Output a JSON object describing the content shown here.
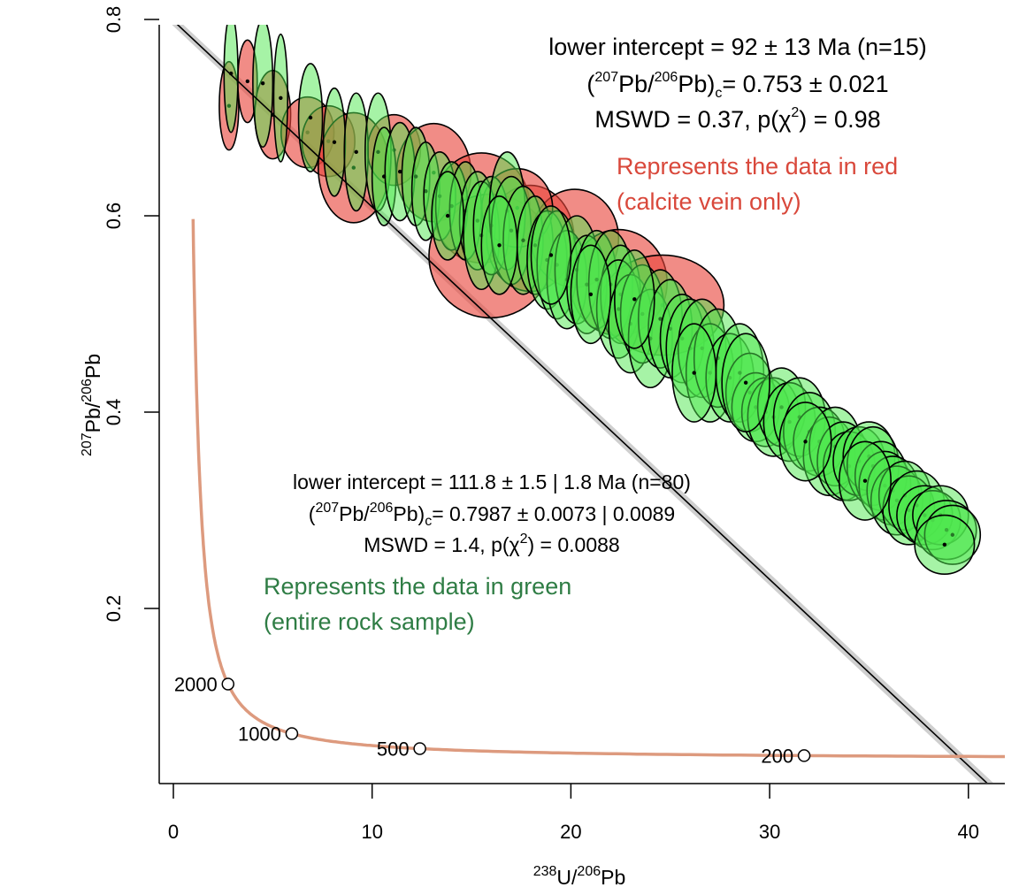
{
  "chart_data": {
    "type": "scatter",
    "subtype": "error-ellipse Tera-Wasserburg concordia",
    "xlabel": {
      "sup1": "238",
      "main1": "U/",
      "sup2": "206",
      "main2": "Pb"
    },
    "ylabel": {
      "sup1": "207",
      "main1": "Pb/",
      "sup2": "206",
      "main2": "Pb"
    },
    "xlim": [
      -0.7,
      42
    ],
    "ylim": [
      0.022,
      0.79
    ],
    "x_ticks": [
      "0",
      "10",
      "20",
      "30",
      "40"
    ],
    "y_ticks": [
      "0.2",
      "0.4",
      "0.6",
      "0.8"
    ],
    "grid": false,
    "colors": {
      "red_fill": "#e8463c",
      "green_fill": "#4de84d",
      "concordia": "#dd9a7e",
      "red_text": "#d9483b",
      "green_text": "#2f7d45",
      "line": "#000000",
      "band": "#bbbbbb"
    },
    "concordia_labels": [
      {
        "age": "2000",
        "t": 2000
      },
      {
        "age": "1000",
        "t": 1000
      },
      {
        "age": "500",
        "t": 500
      },
      {
        "age": "200",
        "t": 200
      }
    ],
    "regression": {
      "y_intercept": 0.7987,
      "x_at_y0": 42.1
    },
    "red_annotation": {
      "line1": "lower intercept = 92 ± 13 Ma (n=15)",
      "open": "(",
      "sup1": "207",
      "pb1": "Pb/",
      "sup2": "206",
      "pb2": "Pb)",
      "sub": "c",
      "value": "= 0.753 ± 0.021",
      "mswd_a": "MSWD = 0.37, p(χ",
      "mswd_sup": "2",
      "mswd_b": ") = 0.98",
      "desc1": "Represents the data in red",
      "desc2": "(calcite vein only)"
    },
    "green_annotation": {
      "line1": "lower intercept = 111.8 ± 1.5 | 1.8 Ma (n=80)",
      "open": "(",
      "sup1": "207",
      "pb1": "Pb/",
      "sup2": "206",
      "pb2": "Pb)",
      "sub": "c",
      "value": "= 0.7987 ± 0.0073 | 0.0089",
      "mswd_a": "MSWD = 1.4, p(χ",
      "mswd_sup": "2",
      "mswd_b": ") = 0.0088",
      "desc1": "Represents the data in green",
      "desc2": "(entire rock sample)"
    },
    "red_series": [
      [
        2.8,
        0.712,
        0.49,
        0.045
      ],
      [
        3.73,
        0.737,
        0.49,
        0.042
      ],
      [
        5.0,
        0.703,
        0.9,
        0.045
      ],
      [
        6.75,
        0.685,
        1.33,
        0.036
      ],
      [
        7.8,
        0.676,
        1.33,
        0.036
      ],
      [
        9.07,
        0.649,
        1.78,
        0.056
      ],
      [
        11.1,
        0.667,
        1.33,
        0.036
      ],
      [
        13.1,
        0.644,
        1.87,
        0.05
      ],
      [
        15.5,
        0.608,
        2.44,
        0.056
      ],
      [
        15.96,
        0.559,
        3.1,
        0.063
      ],
      [
        17.96,
        0.577,
        2.2,
        0.054
      ],
      [
        20.2,
        0.577,
        2.2,
        0.05
      ],
      [
        22.4,
        0.532,
        2.44,
        0.054
      ],
      [
        24.6,
        0.509,
        3.1,
        0.051
      ],
      [
        17.3,
        0.608,
        1.78,
        0.04
      ]
    ],
    "green_series": [
      [
        2.9,
        0.745,
        0.35,
        0.06
      ],
      [
        4.5,
        0.735,
        0.5,
        0.065
      ],
      [
        5.4,
        0.72,
        0.35,
        0.065
      ],
      [
        6.9,
        0.7,
        0.6,
        0.055
      ],
      [
        8.1,
        0.675,
        0.55,
        0.055
      ],
      [
        9.2,
        0.665,
        0.6,
        0.06
      ],
      [
        10.3,
        0.665,
        0.65,
        0.06
      ],
      [
        10.6,
        0.64,
        0.6,
        0.05
      ],
      [
        11.4,
        0.645,
        0.75,
        0.05
      ],
      [
        12.2,
        0.64,
        0.7,
        0.05
      ],
      [
        12.7,
        0.625,
        0.7,
        0.05
      ],
      [
        13.4,
        0.62,
        0.8,
        0.045
      ],
      [
        14.0,
        0.61,
        0.8,
        0.045
      ],
      [
        14.7,
        0.605,
        0.8,
        0.05
      ],
      [
        15.3,
        0.595,
        0.9,
        0.05
      ],
      [
        15.5,
        0.58,
        0.9,
        0.055
      ],
      [
        16.0,
        0.59,
        0.9,
        0.05
      ],
      [
        16.8,
        0.605,
        0.9,
        0.06
      ],
      [
        17.0,
        0.585,
        1.0,
        0.055
      ],
      [
        17.6,
        0.575,
        1.0,
        0.055
      ],
      [
        18.2,
        0.57,
        0.9,
        0.05
      ],
      [
        18.8,
        0.555,
        1.0,
        0.05
      ],
      [
        19.3,
        0.55,
        1.0,
        0.055
      ],
      [
        19.8,
        0.535,
        1.0,
        0.05
      ],
      [
        20.3,
        0.545,
        1.1,
        0.055
      ],
      [
        20.8,
        0.53,
        1.0,
        0.05
      ],
      [
        21.3,
        0.535,
        1.0,
        0.05
      ],
      [
        22.0,
        0.53,
        1.1,
        0.055
      ],
      [
        22.5,
        0.52,
        1.0,
        0.05
      ],
      [
        22.4,
        0.505,
        1.1,
        0.05
      ],
      [
        23.0,
        0.49,
        1.1,
        0.05
      ],
      [
        23.6,
        0.5,
        1.1,
        0.05
      ],
      [
        24.0,
        0.475,
        1.1,
        0.05
      ],
      [
        24.5,
        0.495,
        1.1,
        0.05
      ],
      [
        25.0,
        0.485,
        1.1,
        0.05
      ],
      [
        25.6,
        0.475,
        1.1,
        0.045
      ],
      [
        26.0,
        0.465,
        1.2,
        0.05
      ],
      [
        26.6,
        0.465,
        1.2,
        0.05
      ],
      [
        27.0,
        0.44,
        1.2,
        0.05
      ],
      [
        27.4,
        0.455,
        1.2,
        0.05
      ],
      [
        28.0,
        0.435,
        1.2,
        0.045
      ],
      [
        28.5,
        0.44,
        1.2,
        0.05
      ],
      [
        29.0,
        0.42,
        1.2,
        0.04
      ],
      [
        29.3,
        0.405,
        1.2,
        0.035
      ],
      [
        29.8,
        0.4,
        1.2,
        0.035
      ],
      [
        30.2,
        0.395,
        1.3,
        0.04
      ],
      [
        30.6,
        0.405,
        1.2,
        0.04
      ],
      [
        31.0,
        0.39,
        1.3,
        0.04
      ],
      [
        31.5,
        0.395,
        1.3,
        0.04
      ],
      [
        32.0,
        0.38,
        1.3,
        0.04
      ],
      [
        32.5,
        0.37,
        1.3,
        0.035
      ],
      [
        33.0,
        0.355,
        1.3,
        0.04
      ],
      [
        33.3,
        0.365,
        1.3,
        0.04
      ],
      [
        33.7,
        0.35,
        1.3,
        0.04
      ],
      [
        34.0,
        0.345,
        1.3,
        0.035
      ],
      [
        34.5,
        0.35,
        1.3,
        0.035
      ],
      [
        35.0,
        0.355,
        1.3,
        0.035
      ],
      [
        35.2,
        0.345,
        1.3,
        0.04
      ],
      [
        35.6,
        0.335,
        1.3,
        0.035
      ],
      [
        35.8,
        0.325,
        1.3,
        0.035
      ],
      [
        36.2,
        0.32,
        1.3,
        0.035
      ],
      [
        36.4,
        0.31,
        1.3,
        0.035
      ],
      [
        36.8,
        0.315,
        1.3,
        0.035
      ],
      [
        37.0,
        0.3,
        1.3,
        0.035
      ],
      [
        37.4,
        0.305,
        1.4,
        0.035
      ],
      [
        37.8,
        0.295,
        1.4,
        0.03
      ],
      [
        38.2,
        0.29,
        1.4,
        0.03
      ],
      [
        38.6,
        0.295,
        1.4,
        0.03
      ],
      [
        38.9,
        0.28,
        1.5,
        0.03
      ],
      [
        39.2,
        0.275,
        1.4,
        0.03
      ],
      [
        38.8,
        0.265,
        1.5,
        0.03
      ],
      [
        34.8,
        0.33,
        1.3,
        0.04
      ],
      [
        31.8,
        0.37,
        1.3,
        0.04
      ],
      [
        28.8,
        0.43,
        1.2,
        0.05
      ],
      [
        26.2,
        0.44,
        1.1,
        0.05
      ],
      [
        23.2,
        0.515,
        1.0,
        0.05
      ],
      [
        21.0,
        0.52,
        1.0,
        0.05
      ],
      [
        19.0,
        0.56,
        1.0,
        0.05
      ],
      [
        16.4,
        0.57,
        0.9,
        0.05
      ],
      [
        13.8,
        0.6,
        0.8,
        0.045
      ]
    ]
  }
}
